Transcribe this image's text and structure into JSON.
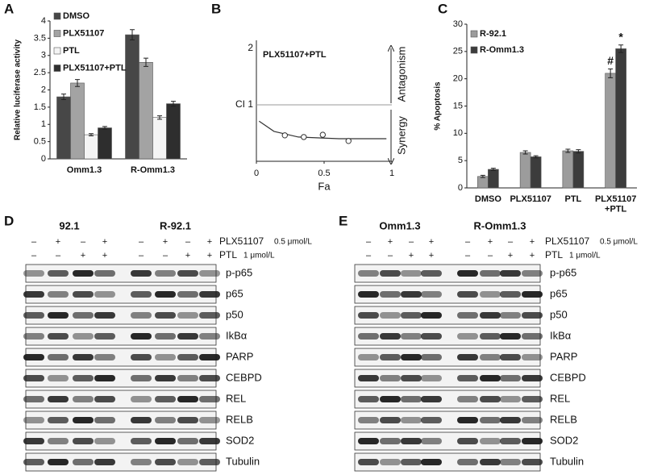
{
  "chart_data": [
    {
      "label": "A",
      "type": "bar",
      "ylabel": "Relative luciferase activity",
      "categories": [
        "Omm1.3",
        "R-Omm1.3"
      ],
      "series": [
        {
          "name": "DMSO",
          "color": "#474747",
          "values": [
            1.8,
            3.6
          ],
          "errors": [
            0.08,
            0.15
          ]
        },
        {
          "name": "PLX51107",
          "color": "#a3a3a3",
          "values": [
            2.2,
            2.8
          ],
          "errors": [
            0.1,
            0.12
          ]
        },
        {
          "name": "PTL",
          "color": "#f4f4f4",
          "values": [
            0.7,
            1.2
          ],
          "errors": [
            0.03,
            0.05
          ]
        },
        {
          "name": "PLX51107+PTL",
          "color": "#2e2e2e",
          "values": [
            0.9,
            1.6
          ],
          "errors": [
            0.04,
            0.07
          ]
        }
      ],
      "ylim": [
        0,
        4
      ],
      "yticks": [
        0,
        0.5,
        1,
        1.5,
        2,
        2.5,
        3,
        3.5,
        4
      ],
      "legend": "upper left"
    },
    {
      "label": "B",
      "type": "scatter",
      "title": "PLX51107+PTL",
      "xlabel": "Fa",
      "x": [
        0.21,
        0.35,
        0.49,
        0.68
      ],
      "values": [
        0.46,
        0.43,
        0.47,
        0.36
      ],
      "curve": {
        "x": [
          0.02,
          0.13,
          0.31,
          0.61,
          0.96
        ],
        "values": [
          0.71,
          0.53,
          0.43,
          0.4,
          0.4
        ]
      },
      "xlim": [
        0,
        1
      ],
      "xticks": [
        0,
        0.5,
        1
      ],
      "ylim": [
        0,
        2
      ],
      "yticks": [
        {
          "value": 1,
          "label": "CI 1"
        },
        2
      ],
      "annotations": [
        "Antagonism",
        "Synergy"
      ]
    },
    {
      "label": "C",
      "type": "bar",
      "ylabel": "% Apoptosis",
      "categories": [
        "DMSO",
        "PLX51107",
        "PTL",
        "PLX51107\n+PTL"
      ],
      "series": [
        {
          "name": "R-92.1",
          "color": "#9c9c9c",
          "values": [
            2.1,
            6.5,
            6.8,
            21
          ],
          "errors": [
            0.2,
            0.3,
            0.3,
            0.8
          ]
        },
        {
          "name": "R-Omm1.3",
          "color": "#3c3c3c",
          "values": [
            3.4,
            5.7,
            6.7,
            25.5
          ],
          "errors": [
            0.2,
            0.2,
            0.3,
            0.7
          ]
        }
      ],
      "ylim": [
        0,
        30
      ],
      "yticks": [
        0,
        5,
        10,
        15,
        20,
        25,
        30
      ],
      "legend": "upper left",
      "annotations": [
        "#",
        "*"
      ]
    }
  ],
  "blots": [
    {
      "label": "D",
      "lines": [
        "92.1",
        "R-92.1"
      ],
      "treatments": [
        {
          "name": "PLX51107",
          "dose": "0.5 μmol/L",
          "signs": [
            "–",
            "+",
            "–",
            "+",
            "–",
            "+",
            "–",
            "+"
          ]
        },
        {
          "name": "PTL",
          "dose": "1 μmol/L",
          "signs": [
            "–",
            "–",
            "+",
            "+",
            "–",
            "–",
            "+",
            "+"
          ]
        }
      ],
      "proteins": [
        "p-p65",
        "p65",
        "p50",
        "IkBα",
        "PARP",
        "CEBPD",
        "REL",
        "RELB",
        "SOD2",
        "Tubulin"
      ]
    },
    {
      "label": "E",
      "lines": [
        "Omm1.3",
        "R-Omm1.3"
      ],
      "treatments": [
        {
          "name": "PLX51107",
          "dose": "0.5 μmol/L",
          "signs": [
            "–",
            "+",
            "–",
            "+",
            "–",
            "+",
            "–",
            "+"
          ]
        },
        {
          "name": "PTL",
          "dose": "1 μmol/L",
          "signs": [
            "–",
            "–",
            "+",
            "+",
            "–",
            "–",
            "+",
            "+"
          ]
        }
      ],
      "proteins": [
        "p-p65",
        "p65",
        "p50",
        "IkBα",
        "PARP",
        "CEBPD",
        "REL",
        "RELB",
        "SOD2",
        "Tubulin"
      ]
    }
  ]
}
